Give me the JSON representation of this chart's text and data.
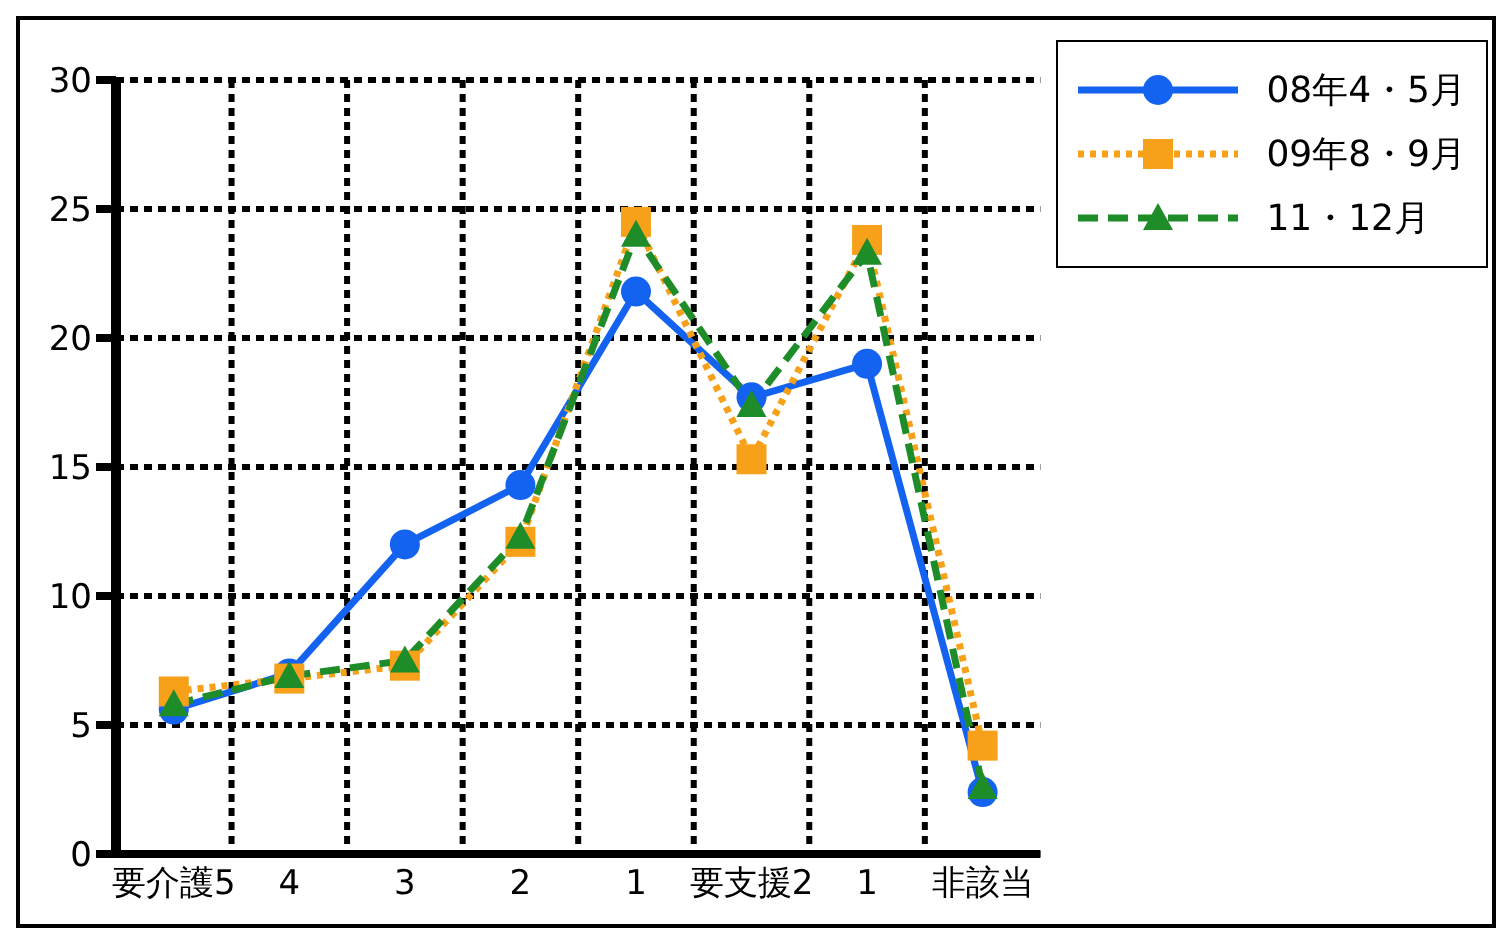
{
  "chart_data": {
    "type": "line",
    "categories": [
      "要介護5",
      "4",
      "3",
      "2",
      "1",
      "要支援2",
      "1",
      "非該当"
    ],
    "series": [
      {
        "name": "08年4・5月",
        "color": "#1463f0",
        "marker": "circle",
        "line_style": "solid",
        "values": [
          5.6,
          7.0,
          12.0,
          14.3,
          21.8,
          17.7,
          19.0,
          2.4
        ]
      },
      {
        "name": "09年8・9月",
        "color": "#f7a11a",
        "marker": "square",
        "line_style": "dotted",
        "values": [
          6.3,
          6.8,
          7.3,
          12.1,
          24.5,
          15.3,
          23.8,
          4.2
        ]
      },
      {
        "name": "11・12月",
        "color": "#1e8c28",
        "marker": "triangle",
        "line_style": "dashed",
        "values": [
          5.8,
          6.9,
          7.5,
          12.3,
          24.0,
          17.4,
          23.3,
          2.6
        ]
      }
    ],
    "ylim": [
      0,
      30
    ],
    "yticks": [
      0,
      5,
      10,
      15,
      20,
      25,
      30
    ],
    "grid": true,
    "legend": "top right"
  }
}
